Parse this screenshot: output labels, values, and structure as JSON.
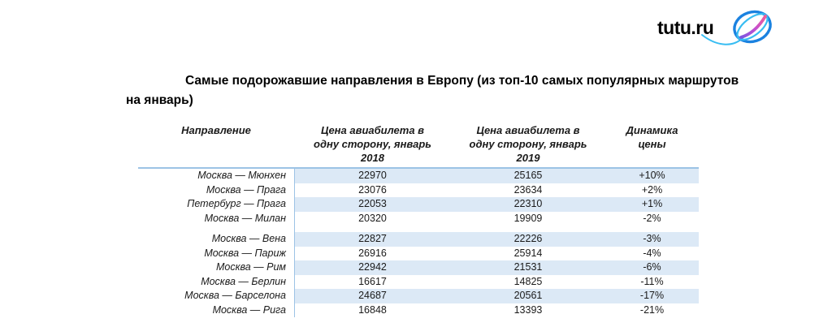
{
  "logo": {
    "text": "tutu.ru",
    "icon": "globe-swoosh-icon",
    "colors": {
      "text": "#000000",
      "globe_blue": "#1b82e0",
      "globe_cyan": "#38bdf2",
      "swoosh_purple": "#7a57e0",
      "swoosh_magenta": "#c44fd0",
      "swoosh_pink": "#ef5e99"
    }
  },
  "title": {
    "line1": "Самые подорожавшие направления в Европу (из топ-10 самых популярных маршрутов",
    "line2": "на январь)"
  },
  "table": {
    "columns": [
      "Направление",
      "Цена авиабилета в одну сторону, январь 2018",
      "Цена авиабилета в одну сторону, январь 2019",
      "Динамика цены"
    ],
    "rows": [
      {
        "direction": "Москва — Мюнхен",
        "price_2018": "22970",
        "price_2019": "25165",
        "change": "+10%"
      },
      {
        "direction": "Москва — Прага",
        "price_2018": "23076",
        "price_2019": "23634",
        "change": "+2%"
      },
      {
        "direction": "Петербург — Прага",
        "price_2018": "22053",
        "price_2019": "22310",
        "change": "+1%"
      },
      {
        "direction": "Москва — Милан",
        "price_2018": "20320",
        "price_2019": "19909",
        "change": "-2%"
      },
      {
        "direction": "Москва — Вена",
        "price_2018": "22827",
        "price_2019": "22226",
        "change": "-3%"
      },
      {
        "direction": "Москва — Париж",
        "price_2018": "26916",
        "price_2019": "25914",
        "change": "-4%"
      },
      {
        "direction": "Москва — Рим",
        "price_2018": "22942",
        "price_2019": "21531",
        "change": "-6%"
      },
      {
        "direction": "Москва — Берлин",
        "price_2018": "16617",
        "price_2019": "14825",
        "change": "-11%"
      },
      {
        "direction": "Москва — Барселона",
        "price_2018": "24687",
        "price_2019": "20561",
        "change": "-17%"
      },
      {
        "direction": "Москва — Рига",
        "price_2018": "16848",
        "price_2019": "13393",
        "change": "-21%"
      }
    ],
    "group_break_after": 4,
    "style": {
      "stripe_color": "#dce9f6",
      "line_color": "#9cc3e5"
    }
  }
}
